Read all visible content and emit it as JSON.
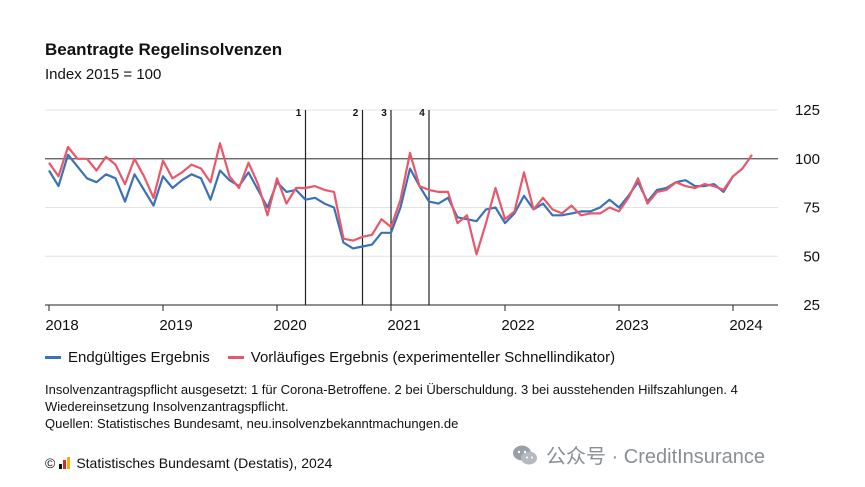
{
  "title": "Beantragte Regelinsolvenzen",
  "subtitle": "Index 2015 = 100",
  "legend": {
    "blue": "Endgültiges Ergebnis",
    "red": "Vorläufiges Ergebnis (experimenteller Schnellindikator)"
  },
  "notes": {
    "line1": "Insolvenzantragspflicht ausgesetzt: 1 für Corona-Betroffene. 2 bei Überschuldung. 3 bei ausstehenden Hilfszahlungen. 4 Wiedereinsetzung Insolvenzantragspflicht.",
    "line2": "Quellen: Statistisches Bundesamt, neu.insolvenzbekanntmachungen.de"
  },
  "footer": {
    "text": "Statistisches Bundesamt (Destatis), 2024"
  },
  "watermark": {
    "text": "公众号 · CreditInsurance"
  },
  "colors": {
    "blue": "#3a72b8",
    "red": "#e8586a",
    "reference": "#555555"
  },
  "chart_data": {
    "type": "line",
    "x_start": "2018-01",
    "x_ticks": [
      "2018",
      "2019",
      "2020",
      "2021",
      "2022",
      "2023",
      "2024"
    ],
    "y_ticks": [
      25,
      50,
      75,
      100,
      125
    ],
    "ylim": [
      25,
      125
    ],
    "reference_line": 100,
    "markers": [
      {
        "label": "1",
        "date": "2020-04"
      },
      {
        "label": "2",
        "date": "2020-10"
      },
      {
        "label": "3",
        "date": "2021-01"
      },
      {
        "label": "4",
        "date": "2021-05"
      }
    ],
    "series": [
      {
        "name": "Endgültiges Ergebnis",
        "color": "blue",
        "values": [
          94,
          86,
          102,
          96,
          90,
          88,
          92,
          90,
          78,
          92,
          84,
          76,
          91,
          85,
          89,
          92,
          90,
          79,
          94,
          89,
          86,
          93,
          84,
          75,
          88,
          83,
          84,
          79,
          80,
          77,
          75,
          57,
          54,
          55,
          56,
          62,
          62,
          75,
          95,
          86,
          78,
          77,
          80,
          70,
          69,
          68,
          74,
          75,
          67,
          72,
          81,
          74,
          77,
          71,
          71,
          72,
          73,
          73,
          75,
          79,
          75,
          81,
          88,
          78,
          84,
          85,
          88,
          89,
          86,
          86,
          87,
          83,
          91
        ]
      },
      {
        "name": "Vorläufiges Ergebnis (experimenteller Schnellindikator)",
        "color": "red",
        "values": [
          98,
          91,
          106,
          100,
          100,
          94,
          101,
          97,
          87,
          100,
          91,
          80,
          99,
          90,
          93,
          97,
          95,
          88,
          108,
          91,
          85,
          98,
          87,
          71,
          90,
          77,
          85,
          85,
          86,
          84,
          83,
          59,
          58,
          60,
          61,
          69,
          65,
          79,
          103,
          86,
          84,
          83,
          83,
          67,
          71,
          51,
          67,
          85,
          69,
          73,
          93,
          74,
          80,
          74,
          72,
          76,
          71,
          72,
          72,
          75,
          73,
          80,
          90,
          77,
          83,
          84,
          88,
          86,
          85,
          87,
          86,
          84,
          91,
          95,
          102
        ]
      }
    ]
  }
}
